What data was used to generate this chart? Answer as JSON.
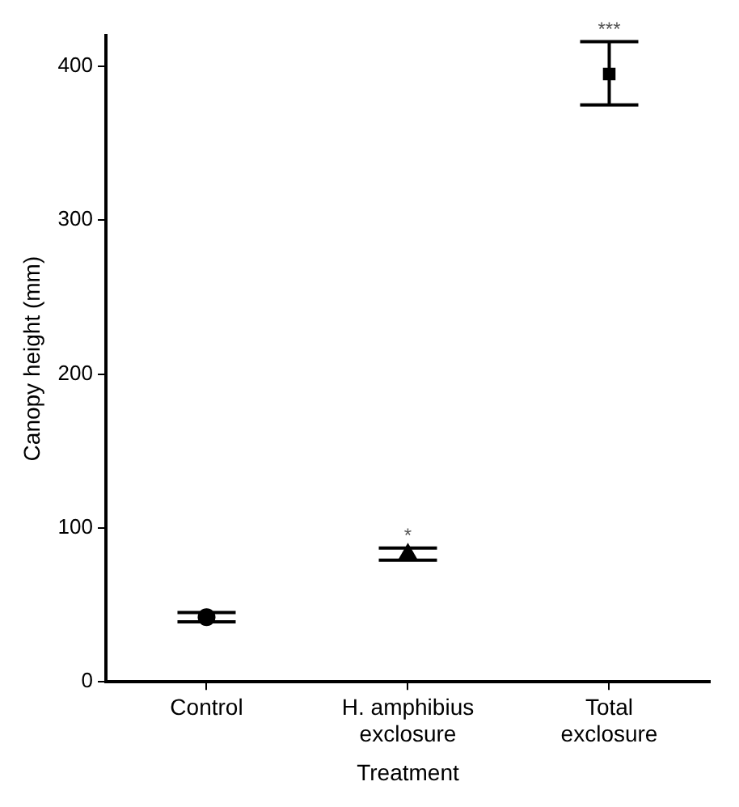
{
  "chart_data": {
    "type": "scatter",
    "xlabel": "Treatment",
    "ylabel": "Canopy height (mm)",
    "categories": [
      "Control",
      "H. amphibius exclosure",
      "Total exclosure"
    ],
    "series": [
      {
        "color": "#000000",
        "marker": "circle",
        "values": [
          42,
          null,
          null
        ],
        "errors": [
          3,
          null,
          null
        ]
      },
      {
        "color": "#000000",
        "marker": "triangle",
        "values": [
          null,
          83,
          null
        ],
        "errors": [
          null,
          [
            79,
            87
          ],
          null
        ]
      },
      {
        "color": "#000000",
        "marker": "square",
        "values": [
          null,
          null,
          395
        ],
        "errors": [
          null,
          null,
          [
            375,
            416
          ]
        ]
      }
    ],
    "ylim": [
      0,
      420
    ],
    "yticks": [
      0,
      100,
      200,
      300,
      400
    ],
    "grid": false,
    "legend": false,
    "annotations": [
      {
        "text": "*",
        "x": "H. amphibius exclosure",
        "y": 87
      },
      {
        "text": "***",
        "x": "Total exclosure",
        "y": 416
      }
    ]
  }
}
